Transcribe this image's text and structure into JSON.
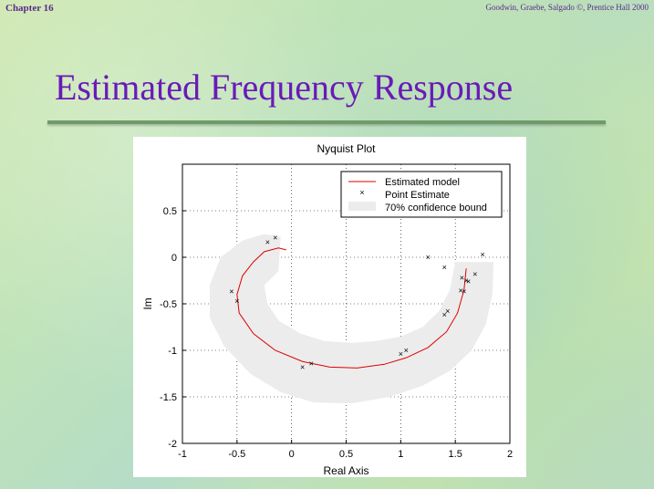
{
  "header": {
    "chapter": "Chapter 16",
    "credit": "Goodwin, Graebe, Salgado ©, Prentice Hall 2000"
  },
  "slide": {
    "title": "Estimated Frequency Response"
  },
  "colors": {
    "title": "#6a1ab8",
    "model_line": "#dd0000",
    "band": "#ececec",
    "points": "#000000"
  },
  "chart_data": {
    "type": "line",
    "title": "Nyquist Plot",
    "xlabel": "Real Axis",
    "ylabel": "Im",
    "xlim": [
      -1,
      2
    ],
    "ylim": [
      -2,
      1
    ],
    "y_reversed": true,
    "grid": true,
    "xticks": [
      -1,
      -0.5,
      0,
      0.5,
      1,
      1.5,
      2
    ],
    "xtick_labels": [
      "-1",
      "-0.5",
      "0",
      "0.5",
      "1",
      "1.5",
      "2"
    ],
    "yticks": [
      0.5,
      0,
      -0.5,
      -1,
      -1.5,
      -2
    ],
    "ytick_labels": [
      "0.5",
      "0",
      "-0.5",
      "-1",
      "-1.5",
      "-2"
    ],
    "legend": {
      "placement": "top-right",
      "entries": [
        "Estimated model",
        "Point Estimate",
        "70% confidence bound"
      ]
    },
    "series": [
      {
        "name": "Estimated model",
        "kind": "line",
        "x": [
          1.6,
          1.58,
          1.52,
          1.42,
          1.25,
          1.05,
          0.85,
          0.6,
          0.35,
          0.1,
          -0.15,
          -0.35,
          -0.48,
          -0.5,
          -0.45,
          -0.35,
          -0.25,
          -0.12,
          -0.05
        ],
        "y": [
          -0.12,
          -0.35,
          -0.6,
          -0.8,
          -0.97,
          -1.08,
          -1.15,
          -1.19,
          -1.18,
          -1.12,
          -1.0,
          -0.82,
          -0.6,
          -0.4,
          -0.2,
          -0.05,
          0.06,
          0.1,
          0.08
        ]
      },
      {
        "name": "Point Estimate",
        "kind": "scatter",
        "x": [
          -0.55,
          -0.5,
          -0.22,
          -0.15,
          0.1,
          0.18,
          1.0,
          1.05,
          1.4,
          1.43,
          1.25,
          1.4,
          1.55,
          1.6,
          1.62,
          1.56,
          1.58,
          1.68,
          1.75
        ],
        "y": [
          -0.37,
          -0.47,
          0.16,
          0.21,
          -1.18,
          -1.14,
          -1.04,
          -1.0,
          -0.62,
          -0.58,
          0.0,
          -0.11,
          -0.36,
          -0.25,
          -0.26,
          -0.22,
          -0.37,
          -0.18,
          0.03
        ]
      },
      {
        "name": "70% confidence bound",
        "kind": "band",
        "outer_x": [
          1.85,
          1.84,
          1.78,
          1.65,
          1.45,
          1.2,
          0.9,
          0.55,
          0.2,
          -0.1,
          -0.38,
          -0.62,
          -0.75,
          -0.75,
          -0.65,
          -0.45,
          -0.25,
          -0.1
        ],
        "outer_y": [
          -0.05,
          -0.4,
          -0.72,
          -1.0,
          -1.22,
          -1.38,
          -1.5,
          -1.57,
          -1.56,
          -1.45,
          -1.25,
          -0.95,
          -0.65,
          -0.3,
          0.0,
          0.18,
          0.25,
          0.22
        ],
        "inner_x": [
          1.5,
          1.45,
          1.35,
          1.2,
          1.0,
          0.78,
          0.55,
          0.3,
          0.08,
          -0.12,
          -0.22,
          -0.25,
          -0.12
        ],
        "inner_y": [
          -0.05,
          -0.35,
          -0.58,
          -0.75,
          -0.85,
          -0.9,
          -0.92,
          -0.9,
          -0.82,
          -0.68,
          -0.5,
          -0.3,
          -0.15
        ]
      }
    ]
  }
}
